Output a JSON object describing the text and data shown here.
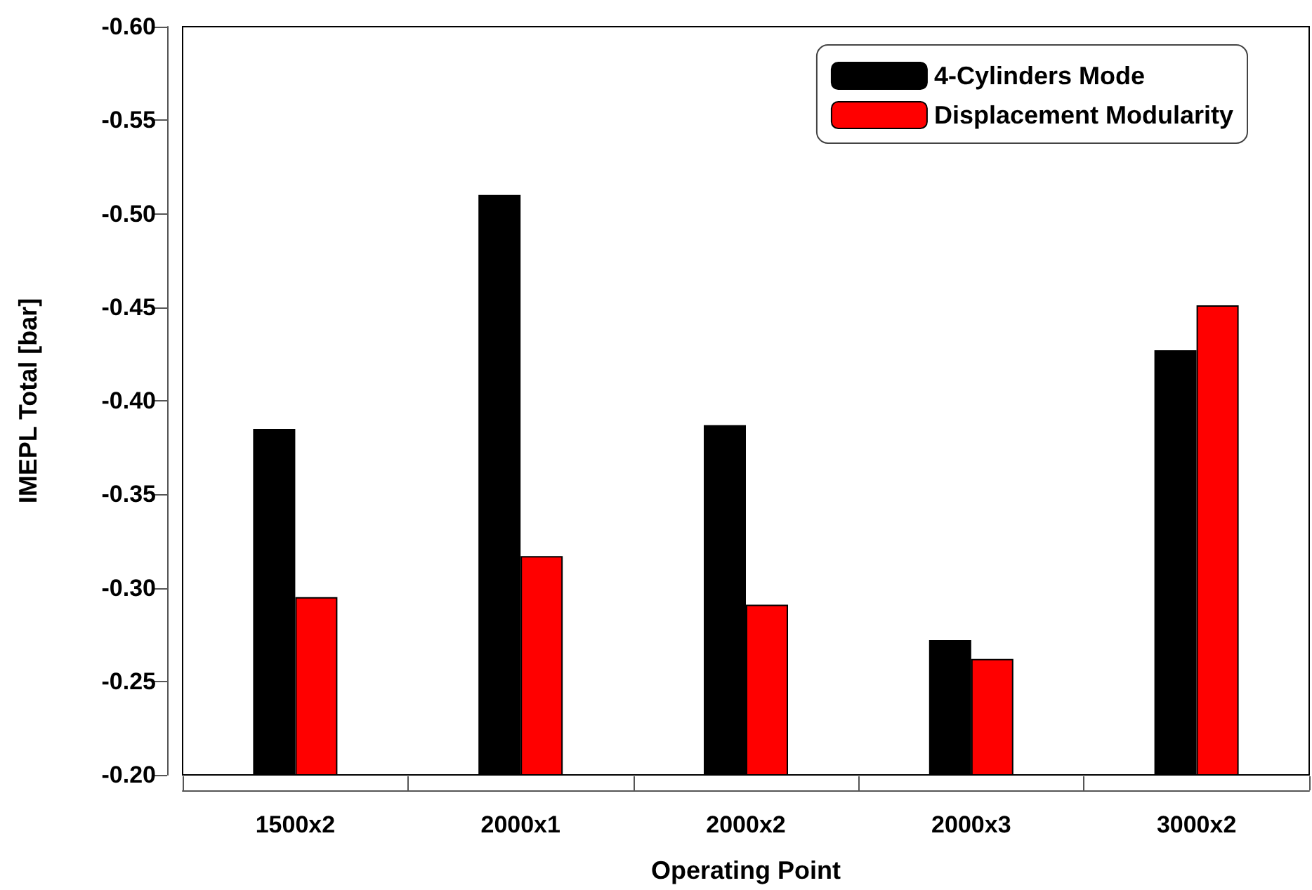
{
  "chart_data": {
    "type": "bar",
    "xlabel": "Operating Point",
    "ylabel": "IMEPL Total [bar]",
    "categories": [
      "1500x2",
      "2000x1",
      "2000x2",
      "2000x3",
      "3000x2"
    ],
    "series": [
      {
        "name": "4-Cylinders Mode",
        "color": "#000000",
        "values": [
          -0.385,
          -0.51,
          -0.387,
          -0.272,
          -0.427
        ]
      },
      {
        "name": "Displacement Modularity",
        "color": "#ff0000",
        "values": [
          -0.295,
          -0.317,
          -0.291,
          -0.262,
          -0.451
        ]
      }
    ],
    "ylim": [
      -0.2,
      -0.6
    ],
    "yticks": [
      {
        "value": -0.6,
        "label": "-0.60"
      },
      {
        "value": -0.55,
        "label": "-0.55"
      },
      {
        "value": -0.5,
        "label": "-0.50"
      },
      {
        "value": -0.45,
        "label": "-0.45"
      },
      {
        "value": -0.4,
        "label": "-0.40"
      },
      {
        "value": -0.35,
        "label": "-0.35"
      },
      {
        "value": -0.3,
        "label": "-0.30"
      },
      {
        "value": -0.25,
        "label": "-0.25"
      },
      {
        "value": -0.2,
        "label": "-0.20"
      }
    ],
    "grid": false,
    "legend": "top right"
  }
}
